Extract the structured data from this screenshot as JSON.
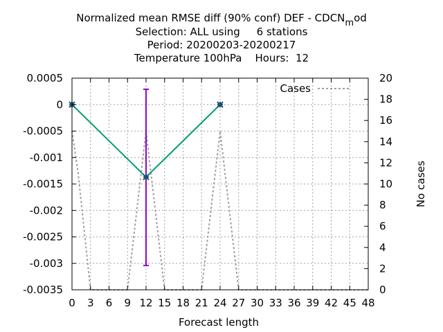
{
  "chart_data": {
    "type": "line",
    "title": {
      "line1_main": "Normalized mean RMSE diff (90% conf) DEF - CDCN",
      "line1_sub": "m",
      "line1_end": "od",
      "line2": "Selection: ALL using     6 stations",
      "line3": "Period: 20200203-20200217",
      "line4": "Temperature 100hPa    Hours:  12"
    },
    "xlabel": "Forecast length",
    "ylabel": "",
    "y2label": "No cases",
    "xlim": [
      0,
      48
    ],
    "ylim": [
      -0.0035,
      0.0005
    ],
    "y2lim": [
      0,
      20
    ],
    "x_ticks": [
      "0",
      "3",
      "6",
      "9",
      "12",
      "15",
      "18",
      "21",
      "24",
      "27",
      "30",
      "33",
      "36",
      "39",
      "42",
      "45",
      "48"
    ],
    "y_ticks": [
      "0.0005",
      "0",
      "-0.0005",
      "-0.001",
      "-0.0015",
      "-0.002",
      "-0.0025",
      "-0.003",
      "-0.0035"
    ],
    "y2_ticks": [
      "20",
      "18",
      "16",
      "14",
      "12",
      "10",
      "8",
      "6",
      "4",
      "2",
      "0"
    ],
    "grid": true,
    "legend_position": "top-right",
    "series": [
      {
        "kind": "mean",
        "color": "#009e73",
        "x": [
          0,
          12,
          24
        ],
        "y": [
          0,
          -0.00137,
          0
        ]
      },
      {
        "kind": "errorbar",
        "color": "#9400d3",
        "x": [
          12
        ],
        "low": [
          -0.00304
        ],
        "high": [
          0.00029
        ]
      },
      {
        "name": "Cases",
        "axis": "y2",
        "style": "dashed",
        "color": "#a0a0a0",
        "x": [
          0,
          1,
          3,
          9,
          12,
          15,
          21,
          24,
          27,
          48
        ],
        "y": [
          15,
          11,
          0,
          0,
          15,
          0,
          0,
          15,
          0,
          0
        ]
      }
    ]
  }
}
